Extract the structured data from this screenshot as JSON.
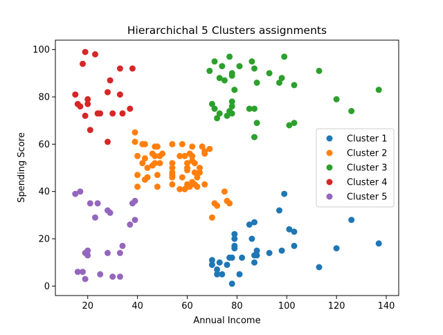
{
  "chart_data": {
    "type": "scatter",
    "title": "Hierarchichal 5 Clusters assignments",
    "xlabel": "Annual Income",
    "ylabel": "Spending Score",
    "xlim": [
      7,
      145
    ],
    "ylim": [
      -4,
      104
    ],
    "xticks": [
      20,
      40,
      60,
      80,
      100,
      120,
      140
    ],
    "yticks": [
      0,
      20,
      40,
      60,
      80,
      100
    ],
    "grid": false,
    "legend_position": "right",
    "series": [
      {
        "name": "Cluster 1",
        "color": "#1f77b4",
        "points": [
          [
            70,
            11
          ],
          [
            70,
            9
          ],
          [
            72,
            7
          ],
          [
            72,
            5
          ],
          [
            73,
            10
          ],
          [
            74,
            5
          ],
          [
            76,
            9
          ],
          [
            77,
            12
          ],
          [
            78,
            1
          ],
          [
            78,
            12
          ],
          [
            79,
            16
          ],
          [
            79,
            17
          ],
          [
            79,
            20
          ],
          [
            79,
            22
          ],
          [
            81,
            5
          ],
          [
            82,
            12
          ],
          [
            85,
            26
          ],
          [
            86,
            20
          ],
          [
            87,
            27
          ],
          [
            87,
            10
          ],
          [
            87,
            13
          ],
          [
            88,
            13
          ],
          [
            88,
            15
          ],
          [
            93,
            14
          ],
          [
            97,
            32
          ],
          [
            98,
            15
          ],
          [
            99,
            39
          ],
          [
            101,
            24
          ],
          [
            103,
            17
          ],
          [
            103,
            23
          ],
          [
            113,
            8
          ],
          [
            120,
            16
          ],
          [
            126,
            28
          ],
          [
            137,
            18
          ]
        ]
      },
      {
        "name": "Cluster 2",
        "color": "#ff7f0e",
        "points": [
          [
            39,
            65
          ],
          [
            39,
            61
          ],
          [
            40,
            55
          ],
          [
            40,
            47
          ],
          [
            40,
            42
          ],
          [
            42,
            52
          ],
          [
            42,
            60
          ],
          [
            43,
            60
          ],
          [
            43,
            54
          ],
          [
            43,
            45
          ],
          [
            44,
            50
          ],
          [
            44,
            46
          ],
          [
            46,
            51
          ],
          [
            46,
            56
          ],
          [
            47,
            52
          ],
          [
            47,
            59
          ],
          [
            47,
            55
          ],
          [
            48,
            47
          ],
          [
            48,
            59
          ],
          [
            48,
            42
          ],
          [
            49,
            55
          ],
          [
            49,
            52
          ],
          [
            50,
            56
          ],
          [
            54,
            60
          ],
          [
            54,
            52
          ],
          [
            54,
            50
          ],
          [
            54,
            47
          ],
          [
            54,
            46
          ],
          [
            54,
            43
          ],
          [
            54,
            48
          ],
          [
            57,
            55
          ],
          [
            57,
            41
          ],
          [
            58,
            60
          ],
          [
            58,
            46
          ],
          [
            59,
            55
          ],
          [
            59,
            41
          ],
          [
            60,
            52
          ],
          [
            60,
            50
          ],
          [
            60,
            49
          ],
          [
            60,
            42
          ],
          [
            60,
            43
          ],
          [
            61,
            56
          ],
          [
            62,
            53
          ],
          [
            62,
            55
          ],
          [
            62,
            59
          ],
          [
            63,
            43
          ],
          [
            63,
            48
          ],
          [
            63,
            52
          ],
          [
            64,
            42
          ],
          [
            64,
            46
          ],
          [
            65,
            50
          ],
          [
            65,
            48
          ],
          [
            66,
            59
          ],
          [
            67,
            56
          ],
          [
            67,
            57
          ],
          [
            67,
            43
          ],
          [
            69,
            58
          ],
          [
            71,
            35
          ],
          [
            72,
            34
          ],
          [
            75,
            40
          ],
          [
            76,
            36
          ],
          [
            77,
            35
          ],
          [
            62,
            44
          ],
          [
            61,
            42
          ],
          [
            70,
            29
          ]
        ]
      },
      {
        "name": "Cluster 3",
        "color": "#2ca02c",
        "points": [
          [
            69,
            91
          ],
          [
            70,
            77
          ],
          [
            71,
            95
          ],
          [
            71,
            75
          ],
          [
            72,
            71
          ],
          [
            73,
            88
          ],
          [
            73,
            73
          ],
          [
            74,
            93
          ],
          [
            75,
            87
          ],
          [
            76,
            72
          ],
          [
            77,
            97
          ],
          [
            77,
            74
          ],
          [
            78,
            90
          ],
          [
            78,
            76
          ],
          [
            78,
            89
          ],
          [
            78,
            78
          ],
          [
            78,
            73
          ],
          [
            79,
            83
          ],
          [
            81,
            93
          ],
          [
            85,
            75
          ],
          [
            86,
            95
          ],
          [
            87,
            63
          ],
          [
            87,
            75
          ],
          [
            87,
            92
          ],
          [
            88,
            86
          ],
          [
            88,
            69
          ],
          [
            93,
            90
          ],
          [
            97,
            86
          ],
          [
            98,
            88
          ],
          [
            99,
            97
          ],
          [
            101,
            68
          ],
          [
            103,
            85
          ],
          [
            103,
            69
          ],
          [
            113,
            91
          ],
          [
            120,
            79
          ],
          [
            126,
            74
          ],
          [
            137,
            83
          ]
        ]
      },
      {
        "name": "Cluster 4",
        "color": "#d62728",
        "points": [
          [
            15,
            81
          ],
          [
            16,
            77
          ],
          [
            17,
            76
          ],
          [
            18,
            94
          ],
          [
            19,
            99
          ],
          [
            19,
            72
          ],
          [
            20,
            79
          ],
          [
            20,
            77
          ],
          [
            21,
            66
          ],
          [
            23,
            98
          ],
          [
            24,
            73
          ],
          [
            25,
            73
          ],
          [
            28,
            82
          ],
          [
            28,
            61
          ],
          [
            29,
            87
          ],
          [
            30,
            73
          ],
          [
            33,
            92
          ],
          [
            33,
            81
          ],
          [
            34,
            73
          ],
          [
            37,
            75
          ],
          [
            38,
            92
          ]
        ]
      },
      {
        "name": "Cluster 5",
        "color": "#9467bd",
        "points": [
          [
            15,
            39
          ],
          [
            16,
            6
          ],
          [
            17,
            40
          ],
          [
            18,
            6
          ],
          [
            19,
            3
          ],
          [
            19,
            14
          ],
          [
            20,
            15
          ],
          [
            20,
            13
          ],
          [
            21,
            35
          ],
          [
            23,
            29
          ],
          [
            24,
            35
          ],
          [
            25,
            5
          ],
          [
            28,
            14
          ],
          [
            28,
            32
          ],
          [
            29,
            31
          ],
          [
            30,
            4
          ],
          [
            33,
            4
          ],
          [
            33,
            14
          ],
          [
            34,
            17
          ],
          [
            37,
            26
          ],
          [
            38,
            35
          ],
          [
            39,
            36
          ],
          [
            39,
            28
          ]
        ]
      }
    ]
  }
}
